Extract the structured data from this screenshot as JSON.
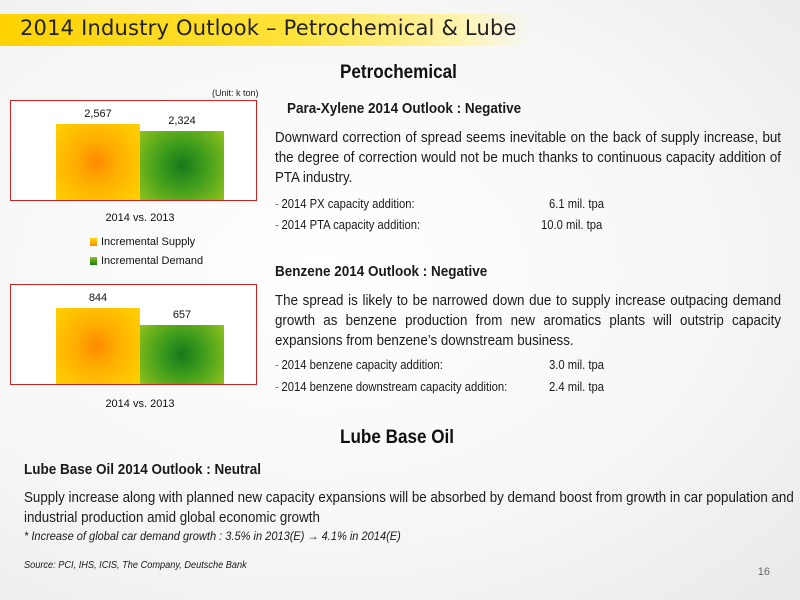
{
  "page_title": "2014 Industry Outlook – Petrochemical & Lube",
  "petro_heading": "Petrochemical",
  "unit_label": "(Unit: k ton)",
  "legend": {
    "supply": "Incremental Supply",
    "demand": "Incremental Demand"
  },
  "colors": {
    "title_band": "#ffd200",
    "supply": "#ffb000",
    "demand": "#3c9b1c",
    "chart_border": "#cc2222"
  },
  "chart_data": [
    {
      "type": "bar",
      "categories": [
        "2014 vs. 2013"
      ],
      "series": [
        {
          "name": "Incremental Supply",
          "values": [
            2567
          ]
        },
        {
          "name": "Incremental Demand",
          "values": [
            2324
          ]
        }
      ],
      "value_labels": [
        "2,567",
        "2,324"
      ],
      "ylabel": "(Unit: k ton)",
      "legend_position": "bottom-left"
    },
    {
      "type": "bar",
      "categories": [
        "2014 vs. 2013"
      ],
      "series": [
        {
          "name": "Incremental Supply",
          "values": [
            844
          ]
        },
        {
          "name": "Incremental Demand",
          "values": [
            657
          ]
        }
      ],
      "value_labels": [
        "844",
        "657"
      ]
    }
  ],
  "px": {
    "heading": "Para-Xylene 2014 Outlook : Negative",
    "body": "Downward correction of spread seems inevitable on the back of supply increase, but the degree of correction would not be much thanks to continuous capacity addition of PTA industry.",
    "bullets": [
      {
        "label": "2014 PX capacity addition:",
        "value": "6.1 mil. tpa"
      },
      {
        "label": "2014 PTA capacity addition:",
        "value": "10.0 mil. tpa"
      }
    ]
  },
  "bz": {
    "heading": "Benzene 2014 Outlook : Negative",
    "body": "The spread is likely to be narrowed down due to supply increase outpacing demand growth as benzene production from new aromatics plants will outstrip capacity expansions from benzene’s downstream business.",
    "bullets": [
      {
        "label": "2014 benzene capacity addition:",
        "value": "3.0 mil. tpa"
      },
      {
        "label": "2014 benzene downstream capacity addition:",
        "value": "2.4 mil. tpa"
      }
    ]
  },
  "lube_heading": "Lube Base Oil",
  "lube": {
    "heading": "Lube Base Oil 2014 Outlook : Neutral",
    "body": "Supply increase along with planned new capacity expansions will be absorbed by demand boost from growth in car population and industrial production amid global economic growth",
    "footnote": "* Increase of global car demand growth  : 3.5% in 2013(E) → 4.1% in 2014(E)"
  },
  "source": "Source: PCI, IHS,  ICIS, The Company, Deutsche Bank",
  "page_number": "16"
}
